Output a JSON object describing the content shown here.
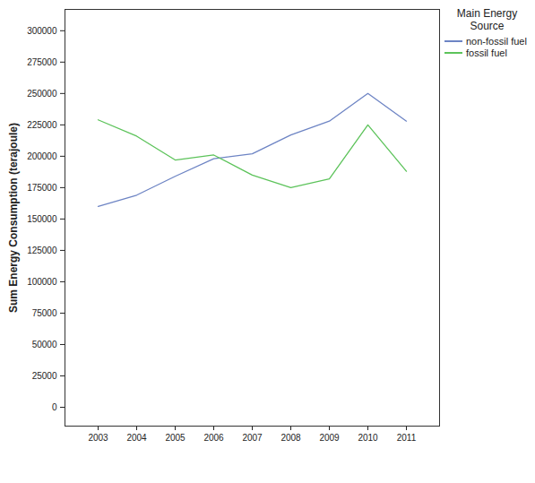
{
  "chart_data": {
    "type": "line",
    "y_label": "Sum Energy Consumption (terajoule)",
    "legend_title": "Main Energy Source",
    "categories": [
      "2003",
      "2004",
      "2005",
      "2006",
      "2007",
      "2008",
      "2009",
      "2010",
      "2011"
    ],
    "series": [
      {
        "name": "non-fossil fuel",
        "color": "#6d84c4",
        "values": [
          160000,
          169000,
          184000,
          198000,
          202000,
          217000,
          228000,
          250000,
          228000
        ]
      },
      {
        "name": "fossil fuel",
        "color": "#5cc35a",
        "values": [
          229000,
          216000,
          197000,
          201000,
          185000,
          175000,
          182000,
          225000,
          188000
        ]
      }
    ],
    "ylim": [
      -15000,
      317000
    ],
    "yticks": [
      0,
      25000,
      50000,
      75000,
      100000,
      125000,
      150000,
      175000,
      200000,
      225000,
      250000,
      275000,
      300000
    ],
    "legend": "right",
    "grid": false
  }
}
